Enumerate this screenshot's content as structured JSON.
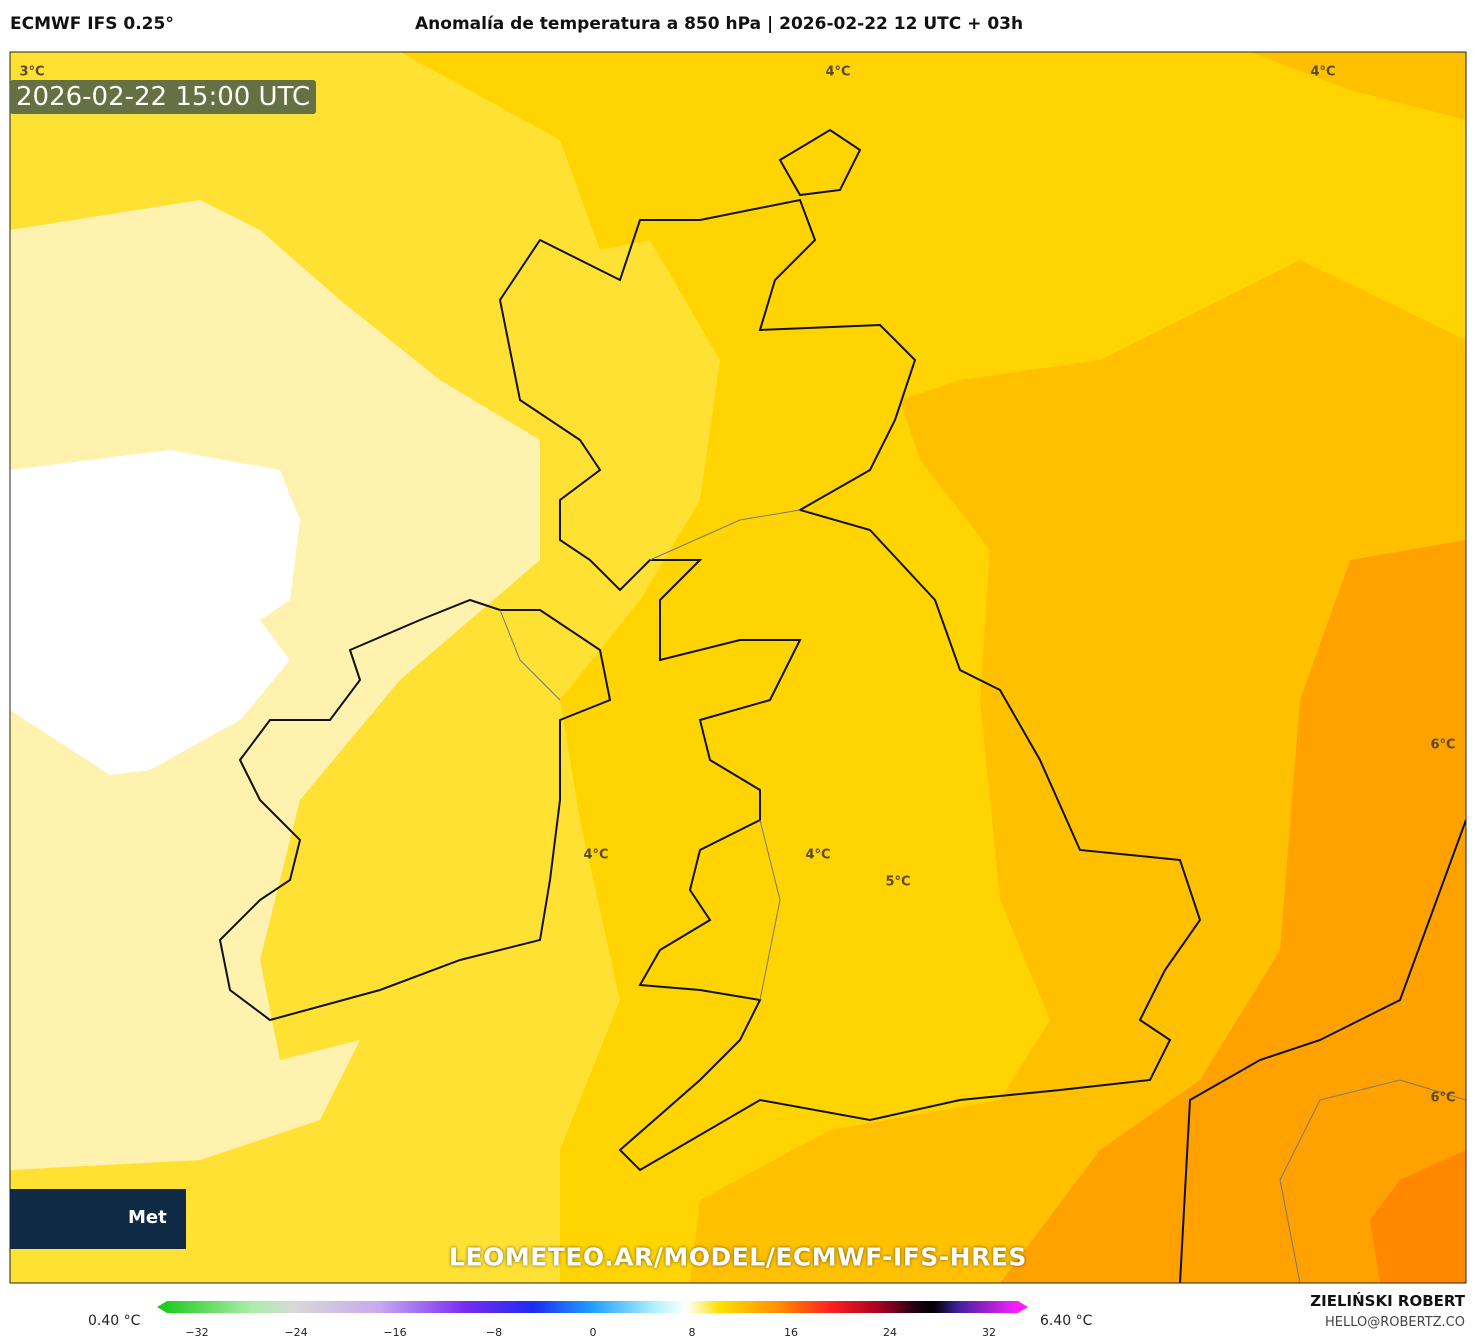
{
  "header": {
    "model": "ECMWF IFS 0.25°",
    "title": "Anomalía de temperatura a 850 hPa | 2026-02-22 12 UTC + 03h"
  },
  "map": {
    "timestamp": "2026-02-22 15:00 UTC",
    "contour_labels": [
      "3°C",
      "4°C",
      "4°C",
      "6°C",
      "4°C",
      "4°C",
      "5°C",
      "6°C"
    ],
    "watermark": "LEOMETEO.AR/MODEL/ECMWF-IFS-HRES",
    "logo_text": "Met"
  },
  "colorbar": {
    "min_label": "0.40 °C",
    "max_label": "6.40 °C",
    "ticks": [
      "−32",
      "−24",
      "−16",
      "−8",
      "0",
      "8",
      "16",
      "24",
      "32"
    ]
  },
  "credit": {
    "name": "ZIELIŃSKI ROBERT",
    "email": "HELLO@ROBERTZ.CO"
  }
}
